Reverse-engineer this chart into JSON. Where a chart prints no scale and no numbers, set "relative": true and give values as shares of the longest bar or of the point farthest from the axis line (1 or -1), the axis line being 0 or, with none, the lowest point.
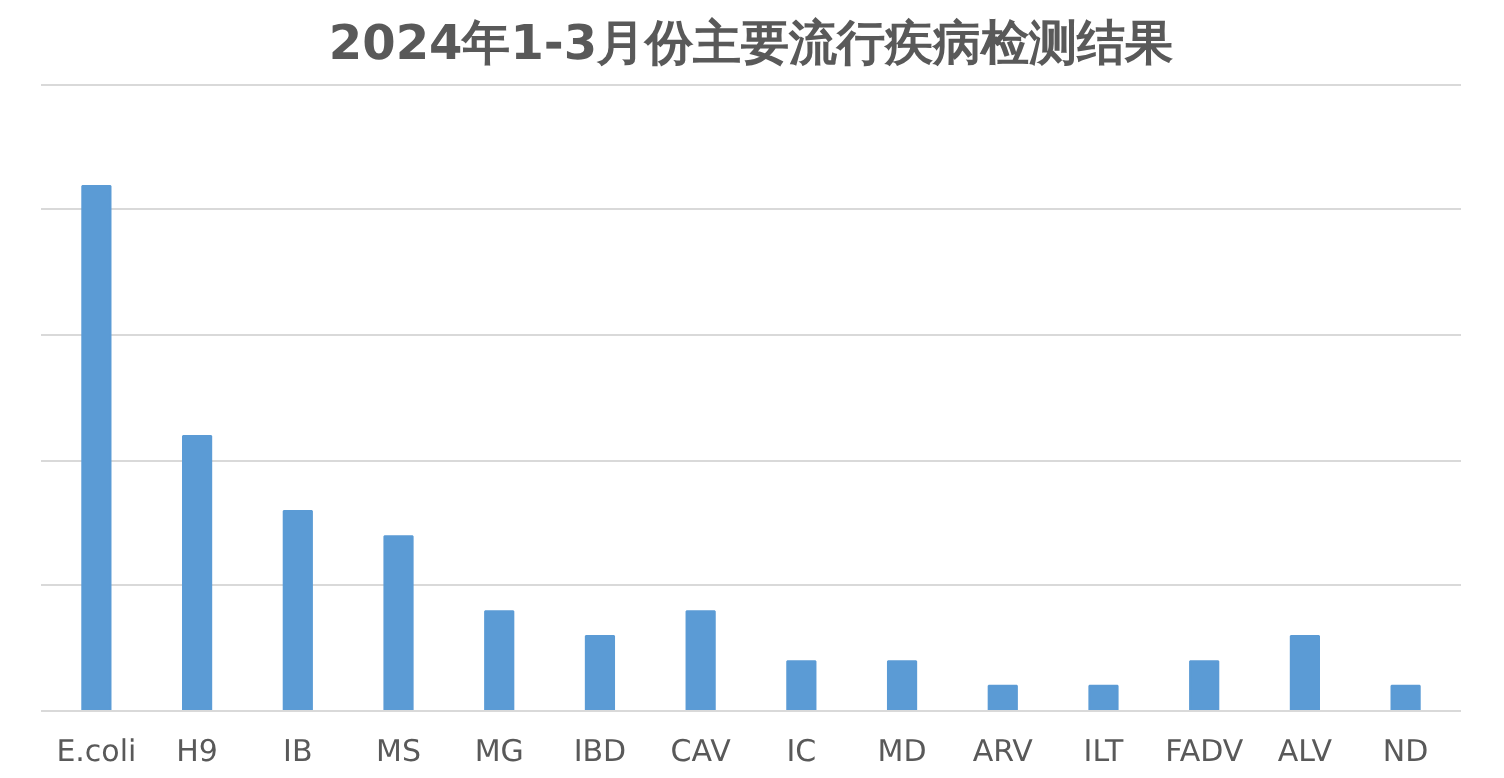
{
  "chart_data": {
    "type": "bar",
    "title": "2024年1-3月份主要流行疾病检测结果",
    "categories": [
      "E.coli",
      "H9",
      "IB",
      "MS",
      "MG",
      "IBD",
      "CAV",
      "IC",
      "MD",
      "ARV",
      "ILT",
      "FADV",
      "ALV",
      "ND"
    ],
    "values": [
      1,
      0.524,
      0.381,
      0.333,
      0.19,
      0.143,
      0.19,
      0.095,
      0.095,
      0.048,
      0.048,
      0.095,
      0.143,
      0.048
    ],
    "color": "#5b9bd5",
    "relative": true,
    "grid": "y"
  }
}
